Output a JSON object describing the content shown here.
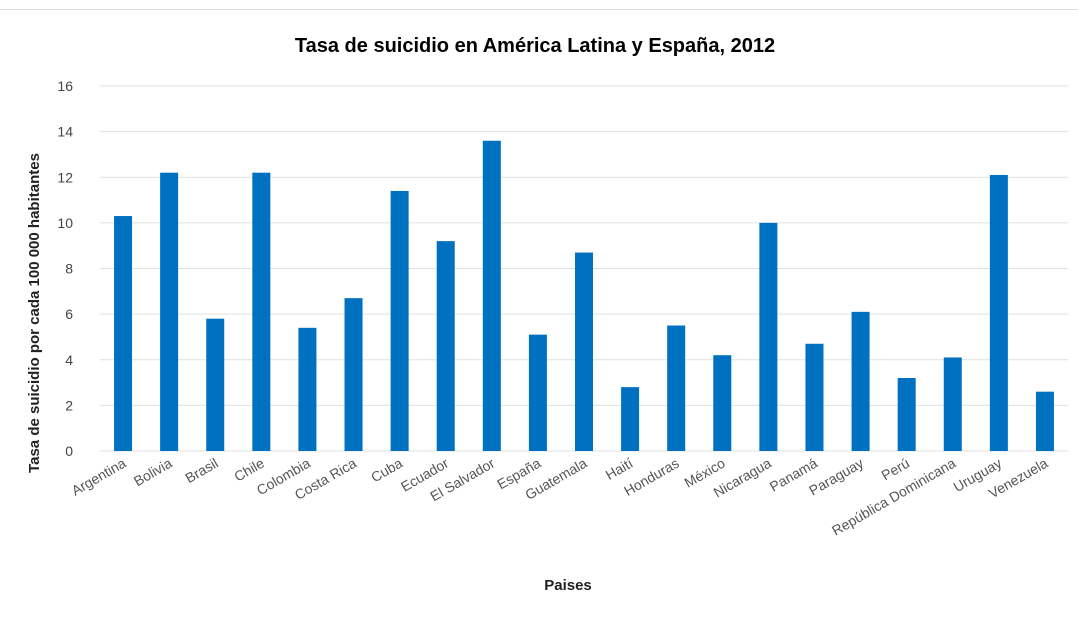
{
  "chart_data": {
    "type": "bar",
    "title": "Tasa de suicidio en América Latina y España, 2012",
    "xlabel": "Paises",
    "ylabel": "Tasa de suicidio por cada 100 000 habitantes",
    "ylim": [
      0,
      16
    ],
    "yticks": [
      "0",
      "2",
      "4",
      "6",
      "8",
      "10",
      "12",
      "14",
      "16"
    ],
    "grid": true,
    "color": "#0070C0",
    "categories": [
      "Argentina",
      "Bolivia",
      "Brasil",
      "Chile",
      "Colombia",
      "Costa Rica",
      "Cuba",
      "Ecuador",
      "El Salvador",
      "España",
      "Guatemala",
      "Haití",
      "Honduras",
      "México",
      "Nicaragua",
      "Panamá",
      "Paraguay",
      "Perú",
      "República Dominicana",
      "Uruguay",
      "Venezuela"
    ],
    "values": [
      10.3,
      12.2,
      5.8,
      12.2,
      5.4,
      6.7,
      11.4,
      9.2,
      13.6,
      5.1,
      8.7,
      2.8,
      5.5,
      4.2,
      10.0,
      4.7,
      6.1,
      3.2,
      4.1,
      12.1,
      2.6
    ]
  }
}
